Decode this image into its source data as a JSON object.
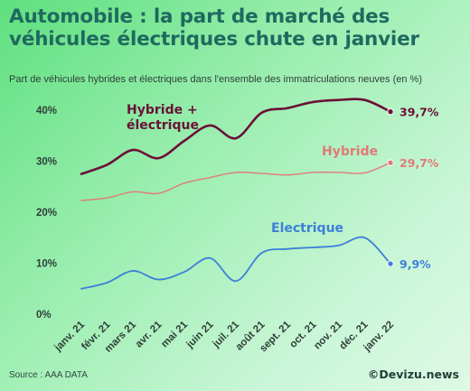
{
  "header": {
    "title": "Automobile : la part de marché des véhicules électriques chute en janvier",
    "subtitle": "Part de véhicules hybrides et électriques dans l'ensemble des immatriculations neuves (en %)"
  },
  "footer": {
    "source": "Source : AAA DATA",
    "brand": "©Devizu.news"
  },
  "colors": {
    "hybride_electrique": "#6b1038",
    "hybride": "#e07a78",
    "electrique": "#3d7fd8",
    "axis_text": "#2f3f3a"
  },
  "chart_data": {
    "type": "line",
    "categories": [
      "janv. 21",
      "févr. 21",
      "mars 21",
      "avr. 21",
      "mai 21",
      "juin 21",
      "juil. 21",
      "août 21",
      "sept. 21",
      "oct. 21",
      "nov. 21",
      "déc. 21",
      "janv. 22"
    ],
    "ylim": [
      0,
      42
    ],
    "yticks": [
      0,
      10,
      20,
      30,
      40
    ],
    "ytick_labels": [
      "0%",
      "10%",
      "20%",
      "30%",
      "40%"
    ],
    "grid": false,
    "series": [
      {
        "name": "Hybride + électrique",
        "label_lines": [
          "Hybride +",
          "électrique"
        ],
        "end_label": "39,7%",
        "color_key": "hybride_electrique",
        "values": [
          27.5,
          29.3,
          32.2,
          30.6,
          34.0,
          37.0,
          34.5,
          39.5,
          40.4,
          41.6,
          42.0,
          42.0,
          39.7
        ]
      },
      {
        "name": "Hybride",
        "label_lines": [
          "Hybride"
        ],
        "end_label": "29,7%",
        "color_key": "hybride",
        "values": [
          22.3,
          22.8,
          24.0,
          23.7,
          25.7,
          26.8,
          27.8,
          27.6,
          27.3,
          27.8,
          27.8,
          27.7,
          29.7
        ]
      },
      {
        "name": "Electrique",
        "label_lines": [
          "Electrique"
        ],
        "end_label": "9,9%",
        "color_key": "electrique",
        "values": [
          5.0,
          6.2,
          8.5,
          6.8,
          8.3,
          11.0,
          6.5,
          12.0,
          12.8,
          13.1,
          13.5,
          15.0,
          9.9
        ]
      }
    ]
  }
}
